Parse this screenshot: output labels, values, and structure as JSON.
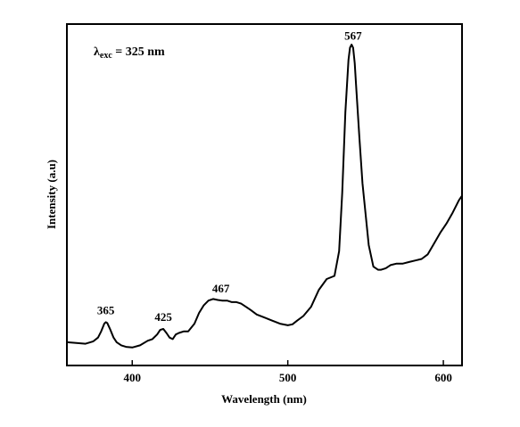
{
  "chart_data": {
    "type": "line",
    "title": "",
    "xlabel": "Wavelength (nm)",
    "ylabel": "Intensity (a.u)",
    "xlim": [
      358,
      612
    ],
    "ylim": [
      0,
      1
    ],
    "xticks": [
      400,
      500,
      600
    ],
    "xtick_labels": [
      "400",
      "500",
      "600"
    ],
    "yticks_shown": false,
    "grid": false,
    "annotation": {
      "symbol": "λ",
      "subscript": "exc",
      "text": " = 325 nm"
    },
    "peak_labels": [
      {
        "text": "365",
        "x": 383
      },
      {
        "text": "425",
        "x": 420
      },
      {
        "text": "467",
        "x": 457
      },
      {
        "text": "567",
        "x": 542
      }
    ],
    "series": [
      {
        "x": [
          358,
          365,
          370,
          375,
          378,
          380,
          382,
          383,
          384,
          386,
          388,
          390,
          393,
          396,
          400,
          405,
          410,
          413,
          416,
          418,
          420,
          422,
          424,
          426,
          428,
          430,
          433,
          436,
          440,
          443,
          446,
          449,
          452,
          455,
          458,
          461,
          464,
          467,
          470,
          473,
          476,
          480,
          485,
          490,
          495,
          500,
          503,
          506,
          510,
          515,
          520,
          525,
          530,
          533,
          535,
          537,
          539,
          540,
          541,
          542,
          543,
          544,
          546,
          548,
          550,
          552,
          555,
          558,
          560,
          563,
          566,
          570,
          574,
          578,
          582,
          586,
          590,
          594,
          598,
          602,
          606,
          610,
          612
        ],
        "y": [
          0.035,
          0.032,
          0.03,
          0.038,
          0.05,
          0.07,
          0.095,
          0.1,
          0.097,
          0.075,
          0.05,
          0.035,
          0.025,
          0.02,
          0.018,
          0.025,
          0.04,
          0.045,
          0.06,
          0.075,
          0.078,
          0.065,
          0.05,
          0.045,
          0.06,
          0.065,
          0.07,
          0.07,
          0.095,
          0.13,
          0.155,
          0.17,
          0.175,
          0.172,
          0.17,
          0.17,
          0.165,
          0.165,
          0.16,
          0.15,
          0.14,
          0.125,
          0.115,
          0.105,
          0.095,
          0.09,
          0.093,
          0.105,
          0.12,
          0.15,
          0.205,
          0.24,
          0.25,
          0.33,
          0.52,
          0.78,
          0.95,
          0.99,
          1.0,
          0.99,
          0.94,
          0.86,
          0.7,
          0.55,
          0.45,
          0.35,
          0.28,
          0.27,
          0.27,
          0.275,
          0.285,
          0.29,
          0.29,
          0.295,
          0.3,
          0.305,
          0.32,
          0.355,
          0.39,
          0.42,
          0.455,
          0.495,
          0.51
        ]
      }
    ]
  }
}
